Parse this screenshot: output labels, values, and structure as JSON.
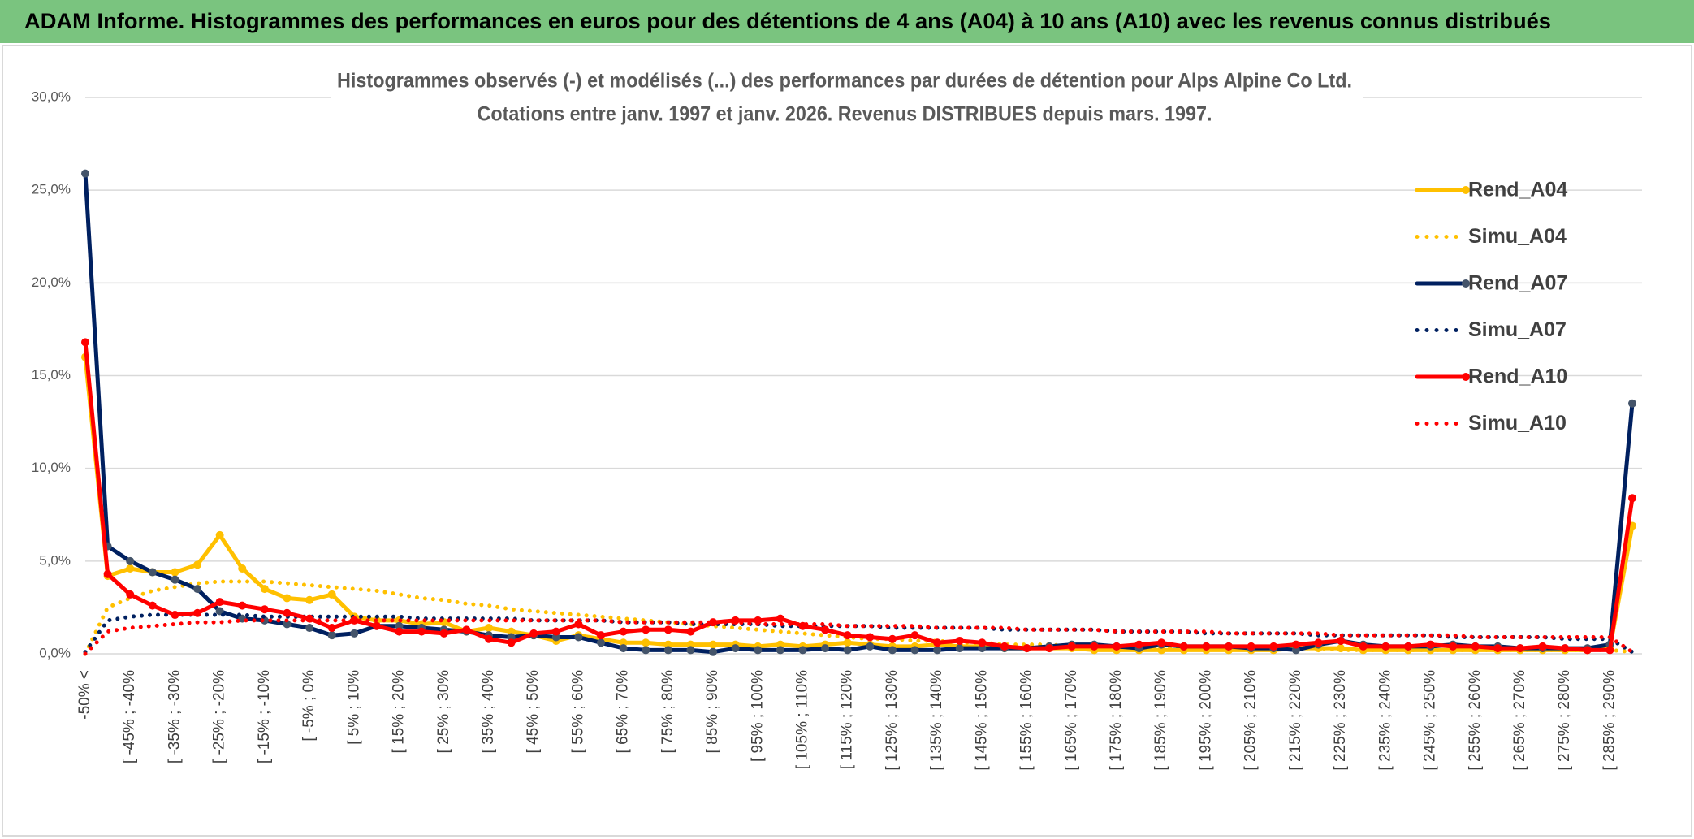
{
  "header": {
    "title": "ADAM Informe. Histogrammes des performances en euros pour des détentions de 4 ans (A04) à 10 ans (A10) avec les revenus connus distribués"
  },
  "chart_data": {
    "type": "line",
    "title": "Histogrammes observés (-) et modélisés (...) des performances par durées de détention pour Alps Alpine Co Ltd.",
    "subtitle": "Cotations entre janv. 1997 et janv. 2026. Revenus DISTRIBUES depuis mars. 1997.",
    "categories": [
      "-50% <",
      null,
      "[ -45% ; -40%",
      null,
      "[ -35% ; -30%",
      null,
      "[ -25% ; -20%",
      null,
      "[ -15% ; -10%",
      null,
      "[ -5% ; 0%",
      null,
      "[ 5% ; 10%",
      null,
      "[ 15% ; 20%",
      null,
      "[ 25% ; 30%",
      null,
      "[ 35% ; 40%",
      null,
      "[ 45% ; 50%",
      null,
      "[ 55% ; 60%",
      null,
      "[ 65% ; 70%",
      null,
      "[ 75% ; 80%",
      null,
      "[ 85% ; 90%",
      null,
      "[ 95% ; 100%",
      null,
      "[ 105% ; 110%",
      null,
      "[ 115% ; 120%",
      null,
      "[ 125% ; 130%",
      null,
      "[ 135% ; 140%",
      null,
      "[ 145% ; 150%",
      null,
      "[ 155% ; 160%",
      null,
      "[ 165% ; 170%",
      null,
      "[ 175% ; 180%",
      null,
      "[ 185% ; 190%",
      null,
      "[ 195% ; 200%",
      null,
      "[ 205% ; 210%",
      null,
      "[ 215% ; 220%",
      null,
      "[ 225% ; 230%",
      null,
      "[ 235% ; 240%",
      null,
      "[ 245% ; 250%",
      null,
      "[ 255% ; 260%",
      null,
      "[ 265% ; 270%",
      null,
      "[ 275% ; 280%",
      null,
      "[ 285% ; 290%",
      null
    ],
    "series": [
      {
        "name": "Rend_A04",
        "color": "#ffc000",
        "line_style": "solid",
        "values": [
          16,
          4.2,
          4.6,
          4.4,
          4.4,
          4.8,
          6.4,
          4.6,
          3.5,
          3.0,
          2.9,
          3.2,
          2.0,
          1.8,
          1.8,
          1.6,
          1.7,
          1.2,
          1.4,
          1.2,
          1.0,
          0.7,
          1.0,
          0.8,
          0.6,
          0.6,
          0.5,
          0.5,
          0.5,
          0.5,
          0.4,
          0.5,
          0.4,
          0.5,
          0.6,
          0.5,
          0.4,
          0.4,
          0.5,
          0.4,
          0.4,
          0.3,
          0.3,
          0.3,
          0.3,
          0.2,
          0.2,
          0.2,
          0.2,
          0.2,
          0.2,
          0.2,
          0.2,
          0.2,
          0.3,
          0.3,
          0.3,
          0.2,
          0.2,
          0.2,
          0.2,
          0.2,
          0.2,
          0.2,
          0.2,
          0.2,
          0.2,
          0.2,
          0.3,
          6.9
        ]
      },
      {
        "name": "Simu_A04",
        "color": "#ffc000",
        "line_style": "dotted",
        "values": [
          0,
          2.5,
          3.0,
          3.4,
          3.6,
          3.8,
          3.9,
          3.9,
          3.9,
          3.8,
          3.7,
          3.6,
          3.5,
          3.4,
          3.2,
          3.0,
          2.9,
          2.7,
          2.6,
          2.4,
          2.3,
          2.2,
          2.1,
          2.0,
          1.9,
          1.8,
          1.7,
          1.6,
          1.5,
          1.4,
          1.3,
          1.2,
          1.1,
          1.0,
          0.9,
          0.8,
          0.8,
          0.7,
          0.7,
          0.6,
          0.6,
          0.5,
          0.5,
          0.5,
          0.4,
          0.4,
          0.4,
          0.4,
          0.3,
          0.3,
          0.3,
          0.3,
          0.3,
          0.3,
          0.3,
          0.3,
          0.2,
          0.2,
          0.2,
          0.2,
          0.2,
          0.2,
          0.2,
          0.2,
          0.2,
          0.2,
          0.2,
          0.2,
          0.2,
          0.1
        ]
      },
      {
        "name": "Rend_A07",
        "color": "#002060",
        "line_style": "solid",
        "values": [
          25.9,
          5.8,
          5.0,
          4.4,
          4.0,
          3.5,
          2.3,
          1.9,
          1.8,
          1.6,
          1.4,
          1.0,
          1.1,
          1.5,
          1.5,
          1.4,
          1.3,
          1.2,
          1.0,
          0.9,
          1.0,
          0.9,
          0.9,
          0.6,
          0.3,
          0.2,
          0.2,
          0.2,
          0.1,
          0.3,
          0.2,
          0.2,
          0.2,
          0.3,
          0.2,
          0.4,
          0.2,
          0.2,
          0.2,
          0.3,
          0.3,
          0.3,
          0.3,
          0.4,
          0.5,
          0.5,
          0.4,
          0.3,
          0.5,
          0.4,
          0.4,
          0.4,
          0.3,
          0.3,
          0.2,
          0.5,
          0.7,
          0.5,
          0.4,
          0.4,
          0.4,
          0.5,
          0.4,
          0.4,
          0.3,
          0.3,
          0.3,
          0.3,
          0.5,
          13.5
        ]
      },
      {
        "name": "Simu_A07",
        "color": "#002060",
        "line_style": "dotted",
        "values": [
          0.1,
          1.8,
          2.0,
          2.1,
          2.1,
          2.1,
          2.1,
          2.1,
          2.0,
          2.0,
          2.0,
          2.0,
          2.0,
          2.0,
          2.0,
          1.9,
          1.9,
          1.9,
          1.9,
          1.9,
          1.8,
          1.8,
          1.8,
          1.8,
          1.7,
          1.7,
          1.7,
          1.6,
          1.6,
          1.6,
          1.6,
          1.5,
          1.5,
          1.5,
          1.5,
          1.5,
          1.4,
          1.4,
          1.4,
          1.4,
          1.4,
          1.3,
          1.3,
          1.3,
          1.3,
          1.3,
          1.2,
          1.2,
          1.2,
          1.2,
          1.1,
          1.1,
          1.1,
          1.1,
          1.1,
          1.0,
          1.0,
          1.0,
          1.0,
          1.0,
          1.0,
          0.9,
          0.9,
          0.9,
          0.9,
          0.9,
          0.8,
          0.8,
          0.8,
          0.1
        ]
      },
      {
        "name": "Rend_A10",
        "color": "#ff0000",
        "line_style": "solid",
        "values": [
          16.8,
          4.3,
          3.2,
          2.6,
          2.1,
          2.2,
          2.8,
          2.6,
          2.4,
          2.2,
          1.9,
          1.4,
          1.8,
          1.5,
          1.2,
          1.2,
          1.1,
          1.3,
          0.8,
          0.6,
          1.1,
          1.2,
          1.6,
          1.0,
          1.2,
          1.3,
          1.3,
          1.2,
          1.7,
          1.8,
          1.8,
          1.9,
          1.5,
          1.3,
          1.0,
          0.9,
          0.8,
          1.0,
          0.6,
          0.7,
          0.6,
          0.4,
          0.3,
          0.3,
          0.4,
          0.4,
          0.4,
          0.5,
          0.6,
          0.4,
          0.4,
          0.4,
          0.4,
          0.4,
          0.5,
          0.6,
          0.7,
          0.4,
          0.4,
          0.4,
          0.5,
          0.4,
          0.4,
          0.3,
          0.3,
          0.4,
          0.3,
          0.2,
          0.2,
          8.4
        ]
      },
      {
        "name": "Simu_A10",
        "color": "#ff0000",
        "line_style": "dotted",
        "values": [
          0,
          1.2,
          1.4,
          1.5,
          1.6,
          1.7,
          1.7,
          1.8,
          1.8,
          1.8,
          1.8,
          1.8,
          1.8,
          1.8,
          1.8,
          1.8,
          1.8,
          1.8,
          1.8,
          1.8,
          1.8,
          1.8,
          1.8,
          1.8,
          1.7,
          1.7,
          1.7,
          1.7,
          1.7,
          1.7,
          1.6,
          1.6,
          1.6,
          1.6,
          1.5,
          1.5,
          1.5,
          1.5,
          1.4,
          1.4,
          1.4,
          1.4,
          1.3,
          1.3,
          1.3,
          1.3,
          1.2,
          1.2,
          1.2,
          1.2,
          1.2,
          1.1,
          1.1,
          1.1,
          1.1,
          1.1,
          1.0,
          1.0,
          1.0,
          1.0,
          1.0,
          1.0,
          0.9,
          0.9,
          0.9,
          0.9,
          0.9,
          0.9,
          0.9,
          0.1
        ]
      }
    ],
    "ylim": [
      0,
      30
    ],
    "yticks": [
      {
        "value": 0,
        "label": "0,0%"
      },
      {
        "value": 5,
        "label": "5,0%"
      },
      {
        "value": 10,
        "label": "10,0%"
      },
      {
        "value": 15,
        "label": "15,0%"
      },
      {
        "value": 20,
        "label": "20,0%"
      },
      {
        "value": 25,
        "label": "25,0%"
      },
      {
        "value": 30,
        "label": "30,0%"
      }
    ],
    "grid": true,
    "legend": "right"
  }
}
